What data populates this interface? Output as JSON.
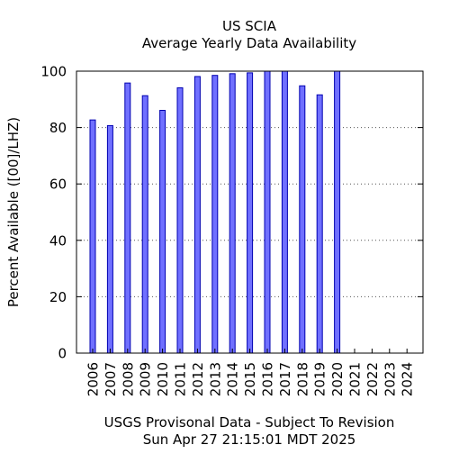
{
  "chart_data": {
    "type": "bar",
    "title": "US SCIA",
    "subtitle": "Average Yearly Data Availability",
    "ylabel": "Percent Available ([00]/LHZ)",
    "xlabel": "",
    "ylim": [
      0,
      100
    ],
    "yticks": [
      0,
      20,
      40,
      60,
      80,
      100
    ],
    "grid": true,
    "categories": [
      "2006",
      "2007",
      "2008",
      "2009",
      "2010",
      "2011",
      "2012",
      "2013",
      "2014",
      "2015",
      "2016",
      "2017",
      "2018",
      "2019",
      "2020",
      "2021",
      "2022",
      "2023",
      "2024"
    ],
    "values": [
      82.7,
      80.7,
      95.8,
      91.3,
      86.1,
      94.1,
      98.1,
      98.5,
      99.1,
      99.4,
      100,
      100,
      94.8,
      91.6,
      100,
      0,
      0,
      0,
      0
    ],
    "bar_color": "#7070ff",
    "bar_edge_color": "#0000b0"
  },
  "footer": {
    "line1": "USGS Provisonal Data - Subject To Revision",
    "line2": "Sun Apr 27 21:15:01 MDT 2025"
  }
}
